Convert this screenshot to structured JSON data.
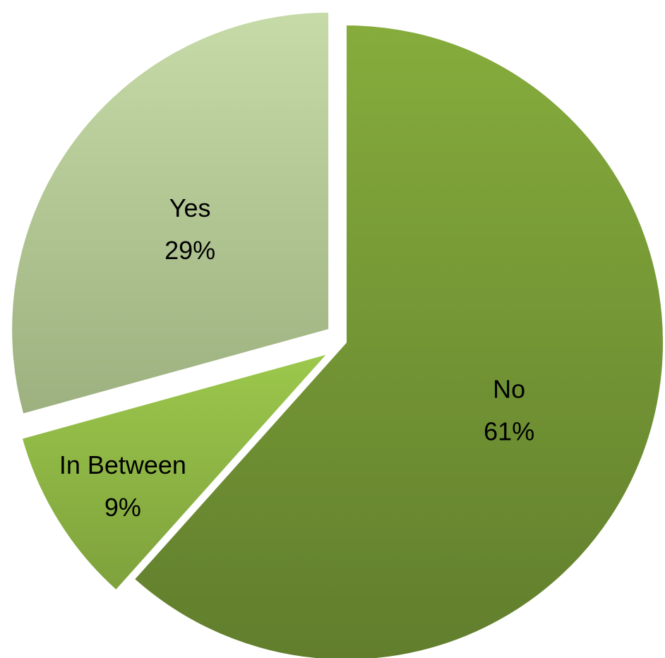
{
  "chart_data": {
    "type": "pie",
    "slices": [
      {
        "label": "No",
        "value": 61,
        "value_label": "61%",
        "color": "#76983A",
        "gradient_light": "#86AC3C",
        "gradient_dark": "#617E2D",
        "exploded": false
      },
      {
        "label": "In Between",
        "value": 9,
        "value_label": "9%",
        "color": "#8DB548",
        "gradient_light": "#9CC84C",
        "gradient_dark": "#7EA13C",
        "exploded": true
      },
      {
        "label": "Yes",
        "value": 29,
        "value_label": "29%",
        "color": "#B4CB95",
        "gradient_light": "#C6DBA8",
        "gradient_dark": "#9DB07F",
        "exploded": true
      }
    ],
    "start_angle": "12 o'clock",
    "direction": "clockwise",
    "legend": "none",
    "labels_inside": true
  }
}
